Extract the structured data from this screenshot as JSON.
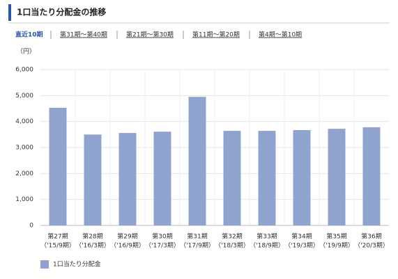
{
  "header": {
    "title": "1口当たり分配金の推移"
  },
  "tabs": [
    "直近10期",
    "第31期～第40期",
    "第21期～第30期",
    "第11期～第20期",
    "第4期～第10期"
  ],
  "chart_data": {
    "type": "bar",
    "unit_label": "（円）",
    "categories": [
      "第27期",
      "第28期",
      "第29期",
      "第30期",
      "第31期",
      "第32期",
      "第33期",
      "第34期",
      "第35期",
      "第36期"
    ],
    "periods": [
      "（'15/9期）",
      "（'16/3期）",
      "（'16/9期）",
      "（'17/3期）",
      "（'17/9期）",
      "（'18/3期）",
      "（'18/9期）",
      "（'19/3期）",
      "（'19/9期）",
      "（'20/3期）"
    ],
    "series": [
      {
        "name": "1口当たり分配金",
        "color": "#8fa3cf",
        "values": [
          4530,
          3500,
          3560,
          3610,
          4950,
          3640,
          3640,
          3670,
          3720,
          3780
        ]
      }
    ],
    "ylim": [
      0,
      6000
    ],
    "yticks": [
      0,
      {
        "value": 1000,
        "label": "1,000"
      },
      {
        "value": 2000,
        "label": "2,000"
      },
      {
        "value": 3000,
        "label": "3,000"
      },
      {
        "value": 4000,
        "label": "4,000"
      },
      {
        "value": 5000,
        "label": "5,000"
      },
      {
        "value": 6000,
        "label": "6,000"
      }
    ],
    "grid": true
  }
}
